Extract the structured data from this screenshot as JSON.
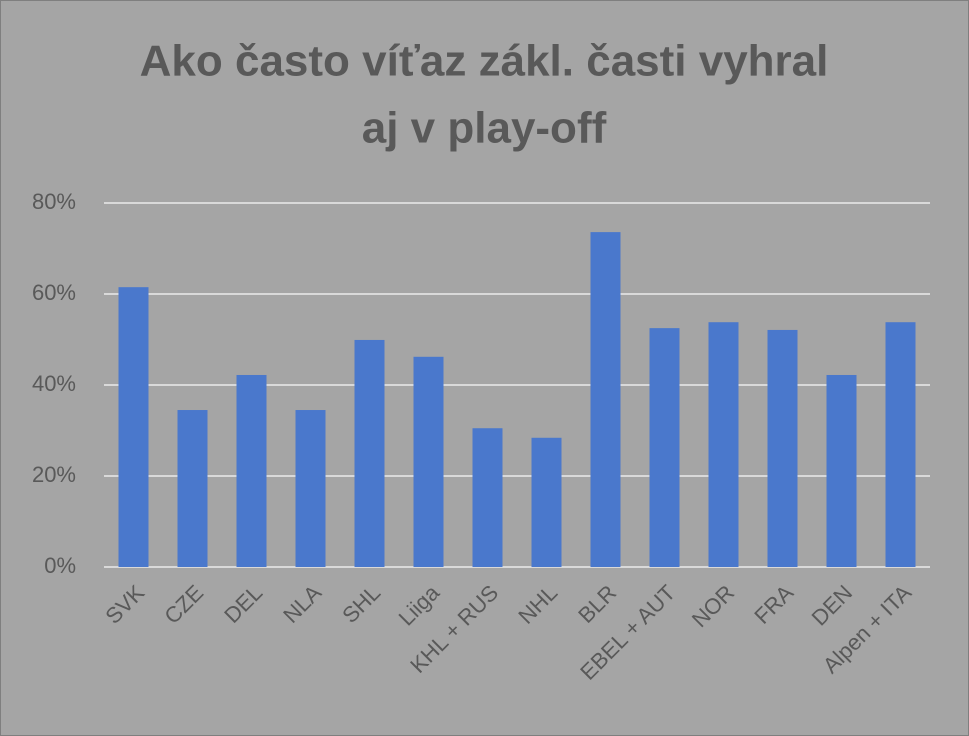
{
  "chart_data": {
    "type": "bar",
    "title": [
      "Ako často víťaz zákl. časti vyhral",
      "aj v play-off"
    ],
    "categories": [
      "SVK",
      "CZE",
      "DEL",
      "NLA",
      "SHL",
      "Liiga",
      "KHL + RUS",
      "NHL",
      "BLR",
      "EBEL + AUT",
      "NOR",
      "FRA",
      "DEN",
      "Alpen + ITA"
    ],
    "values": [
      61.5,
      34.5,
      42.2,
      34.5,
      49.9,
      46.2,
      30.5,
      28.4,
      73.6,
      52.5,
      53.8,
      52.1,
      42.2,
      53.8
    ],
    "color": "#4a78cc",
    "ylim": [
      0,
      80
    ],
    "yticks": [
      {
        "value": 0,
        "label": "0%"
      },
      {
        "value": 20,
        "label": "20%"
      },
      {
        "value": 40,
        "label": "40%"
      },
      {
        "value": 60,
        "label": "60%"
      },
      {
        "value": 80,
        "label": "80%"
      }
    ],
    "grid": true
  }
}
